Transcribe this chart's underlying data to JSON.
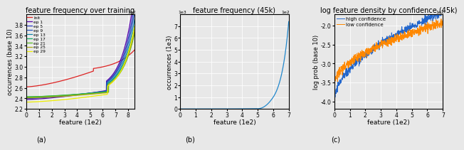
{
  "fig_width": 6.4,
  "fig_height": 2.08,
  "dpi": 100,
  "background_color": "#e8e8e8",
  "plot_bg_color": "#e8e8e8",
  "subplot_a": {
    "title": "feature frequency over training",
    "xlabel": "feature (1e2)",
    "ylabel": "occurrences (base 10)",
    "xlim": [
      0,
      8.5
    ],
    "ylim": [
      2.2,
      4.0
    ],
    "yticks": [
      2.2,
      2.4,
      2.6,
      2.8,
      3.0,
      3.2,
      3.4,
      3.6,
      3.8
    ],
    "xticks": [
      0,
      1,
      2,
      3,
      4,
      5,
      6,
      7,
      8
    ],
    "legend_labels": [
      "Init",
      "ep 1",
      "ep 5",
      "ep 9",
      "ep 13",
      "ep 17",
      "ep 21",
      "ep 25",
      "ep 29"
    ],
    "line_colors": [
      "#dd2222",
      "#5500aa",
      "#2233bb",
      "#2255bb",
      "#1188aa",
      "#11aa66",
      "#55bb22",
      "#aaaa11",
      "#eeee00"
    ]
  },
  "subplot_b": {
    "title": "feature frequency (45k)",
    "xlabel": "feature (1e2)",
    "ylabel": "occurrences (1e3)",
    "xlim": [
      0,
      7.0
    ],
    "ylim": [
      0,
      8000
    ],
    "yticks": [
      0,
      1000,
      2000,
      3000,
      4000,
      5000,
      6000,
      7000
    ],
    "xticks": [
      0,
      1,
      2,
      3,
      4,
      5,
      6,
      7
    ],
    "line_color": "#2288cc"
  },
  "subplot_c": {
    "title": "log feature density by confidence (45k)",
    "xlabel": "feature (1e2)",
    "ylabel": "log prob (base 10)",
    "xlim": [
      0,
      7.0
    ],
    "ylim": [
      -4.2,
      -1.7
    ],
    "yticks": [
      -4.0,
      -3.5,
      -3.0,
      -2.5,
      -2.0
    ],
    "xticks": [
      0,
      1,
      2,
      3,
      4,
      5,
      6,
      7
    ],
    "legend_labels": [
      "high confidence",
      "low confidence"
    ],
    "line_colors": [
      "#2266cc",
      "#ff8800"
    ]
  },
  "caption": "(a)",
  "caption_b": "(b)",
  "caption_c": "(c)"
}
